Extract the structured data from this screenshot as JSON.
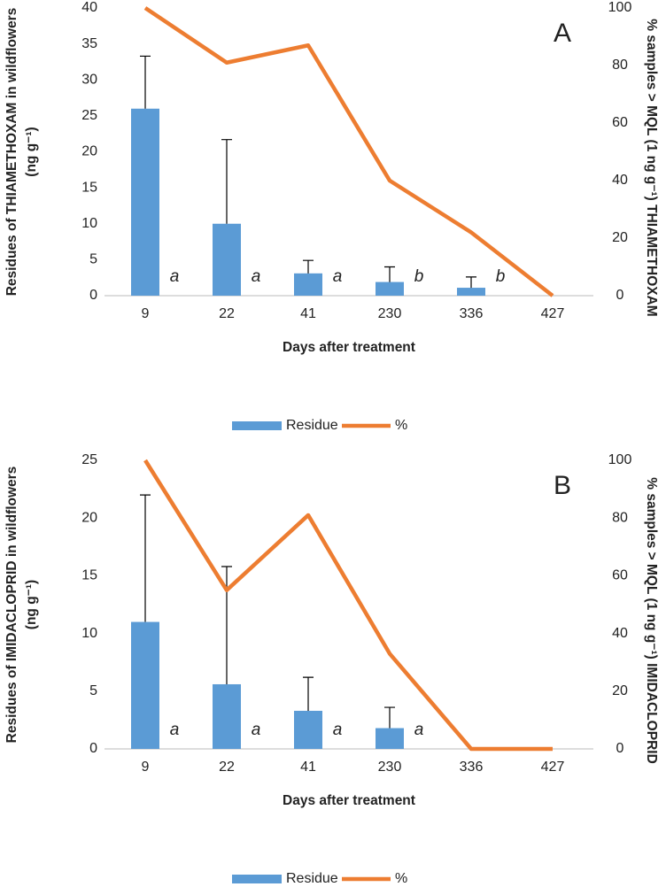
{
  "chart_data": [
    {
      "type": "bar",
      "panel_label": "A",
      "x_label": "Days after treatment",
      "y_label": [
        "Residues of THIAMETHOXAM in wildflowers",
        "(ng g⁻¹)"
      ],
      "y2_label": "% samples > MQL (1 ng g⁻¹) THIAMETHOXAM",
      "categories": [
        "9",
        "22",
        "41",
        "230",
        "336",
        "427"
      ],
      "series": [
        {
          "name": "Residue",
          "type": "bar",
          "color": "#5b9bd5",
          "values": [
            26,
            10,
            3.1,
            1.9,
            1.1,
            null
          ],
          "error": [
            7.3,
            11.7,
            1.8,
            2.1,
            1.5,
            null
          ]
        },
        {
          "name": "%",
          "type": "line",
          "axis": "y2",
          "color": "#ed7d31",
          "values": [
            100,
            81,
            87,
            40,
            22,
            0
          ]
        }
      ],
      "annotations": [
        "a",
        "a",
        "a",
        "b",
        "b"
      ],
      "ylim": [
        0,
        40
      ],
      "yticks": [
        0,
        5,
        10,
        15,
        20,
        25,
        30,
        35,
        40
      ],
      "y2lim": [
        0,
        100
      ],
      "y2ticks": [
        0,
        20,
        40,
        60,
        80,
        100
      ]
    },
    {
      "type": "bar",
      "panel_label": "B",
      "x_label": "Days after treatment",
      "y_label": [
        "Residues of IMIDACLOPRID in wildflowers",
        "(ng g⁻¹)"
      ],
      "y2_label": "% samples > MQL (1 ng g⁻¹) IMIDACLOPRID",
      "categories": [
        "9",
        "22",
        "41",
        "230",
        "336",
        "427"
      ],
      "series": [
        {
          "name": "Residue",
          "type": "bar",
          "color": "#5b9bd5",
          "values": [
            11,
            5.6,
            3.3,
            1.8,
            null,
            null
          ],
          "error": [
            11,
            10.2,
            2.9,
            1.8,
            null,
            null
          ]
        },
        {
          "name": "%",
          "type": "line",
          "axis": "y2",
          "color": "#ed7d31",
          "values": [
            100,
            55,
            81,
            33,
            0,
            0
          ]
        }
      ],
      "annotations": [
        "a",
        "a",
        "a",
        "a"
      ],
      "ylim": [
        0,
        25
      ],
      "yticks": [
        0,
        5,
        10,
        15,
        20,
        25
      ],
      "y2lim": [
        0,
        100
      ],
      "y2ticks": [
        0,
        20,
        40,
        60,
        80,
        100
      ]
    }
  ]
}
